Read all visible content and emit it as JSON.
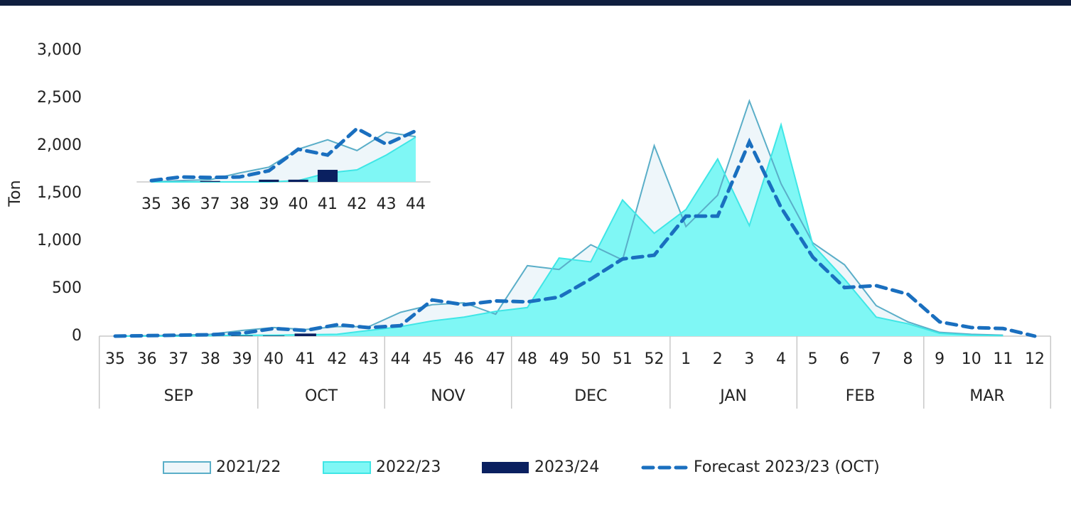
{
  "chart_data": [
    {
      "type": "area",
      "y_label": "Ton",
      "categories": [
        35,
        36,
        37,
        38,
        39,
        40,
        41,
        42,
        43,
        44,
        45,
        46,
        47,
        48,
        49,
        50,
        51,
        52,
        1,
        2,
        3,
        4,
        5,
        6,
        7,
        8,
        9,
        10,
        11,
        12
      ],
      "months": [
        "SEP",
        "SEP",
        "SEP",
        "SEP",
        "SEP",
        "OCT",
        "OCT",
        "OCT",
        "OCT",
        "NOV",
        "NOV",
        "NOV",
        "NOV",
        "DEC",
        "DEC",
        "DEC",
        "DEC",
        "DEC",
        "JAN",
        "JAN",
        "JAN",
        "JAN",
        "FEB",
        "FEB",
        "FEB",
        "FEB",
        "MAR",
        "MAR",
        "MAR",
        "MAR"
      ],
      "ylim": [
        0,
        3000
      ],
      "yticks": [
        0,
        500,
        {
          "value": 1000,
          "label": "1,000"
        },
        {
          "value": 1500,
          "label": "1,500"
        },
        {
          "value": 2000,
          "label": "2,000"
        },
        {
          "value": 2500,
          "label": "2,500"
        },
        {
          "value": 3000,
          "label": "3,000"
        }
      ],
      "series": [
        {
          "name": "2021/22",
          "style": "area",
          "color": "#5aaec8",
          "fill": "#eef6fa",
          "values": [
            0,
            5,
            10,
            20,
            60,
            90,
            70,
            100,
            100,
            250,
            330,
            350,
            230,
            740,
            700,
            960,
            800,
            2000,
            1150,
            1480,
            2470,
            1600,
            980,
            750,
            320,
            150,
            40,
            20,
            10,
            null
          ]
        },
        {
          "name": "2022/23",
          "style": "area",
          "color": "#3fe6e6",
          "fill": "#7ff7f5",
          "values": [
            0,
            0,
            0,
            5,
            10,
            10,
            15,
            20,
            60,
            100,
            160,
            200,
            260,
            300,
            820,
            780,
            1430,
            1080,
            1330,
            1860,
            1160,
            2220,
            960,
            600,
            200,
            130,
            30,
            10,
            5,
            null
          ]
        },
        {
          "name": "2023/24",
          "style": "bar",
          "color": "#0a2060",
          "values": [
            null,
            null,
            2,
            null,
            5,
            5,
            27,
            null,
            null,
            null,
            null,
            null,
            null,
            null,
            null,
            null,
            null,
            null,
            null,
            null,
            null,
            null,
            null,
            null,
            null,
            null,
            null,
            null,
            null,
            null
          ]
        },
        {
          "name": "Forecast 2023/23 (OCT)",
          "style": "dashed",
          "color": "#1a6fbf",
          "values": [
            0,
            5,
            10,
            15,
            30,
            80,
            60,
            120,
            90,
            110,
            380,
            330,
            370,
            360,
            410,
            600,
            810,
            850,
            1260,
            1260,
            2040,
            1350,
            830,
            510,
            530,
            440,
            150,
            90,
            80,
            0
          ]
        }
      ]
    },
    {
      "type": "area",
      "categories": [
        35,
        36,
        37,
        38,
        39,
        40,
        41,
        42,
        43,
        44
      ],
      "ylim": [
        0,
        130
      ],
      "series": [
        {
          "style": "area",
          "color": "#5aaec8",
          "fill": "#eef6fa",
          "values": [
            0,
            3,
            5,
            20,
            33,
            73,
            94,
            70,
            111,
            101
          ]
        },
        {
          "style": "area",
          "color": "#3fe6e6",
          "fill": "#7ff7f5",
          "values": [
            0,
            0,
            0,
            0,
            0,
            3,
            20,
            27,
            60,
            100
          ]
        },
        {
          "style": "bar",
          "color": "#0a2060",
          "values": [
            null,
            null,
            2,
            null,
            5,
            5,
            27,
            null,
            null,
            null
          ]
        },
        {
          "style": "dashed",
          "color": "#1a6fbf",
          "values": [
            3,
            11,
            10,
            11,
            25,
            73,
            60,
            119,
            84,
            114
          ]
        }
      ]
    }
  ]
}
